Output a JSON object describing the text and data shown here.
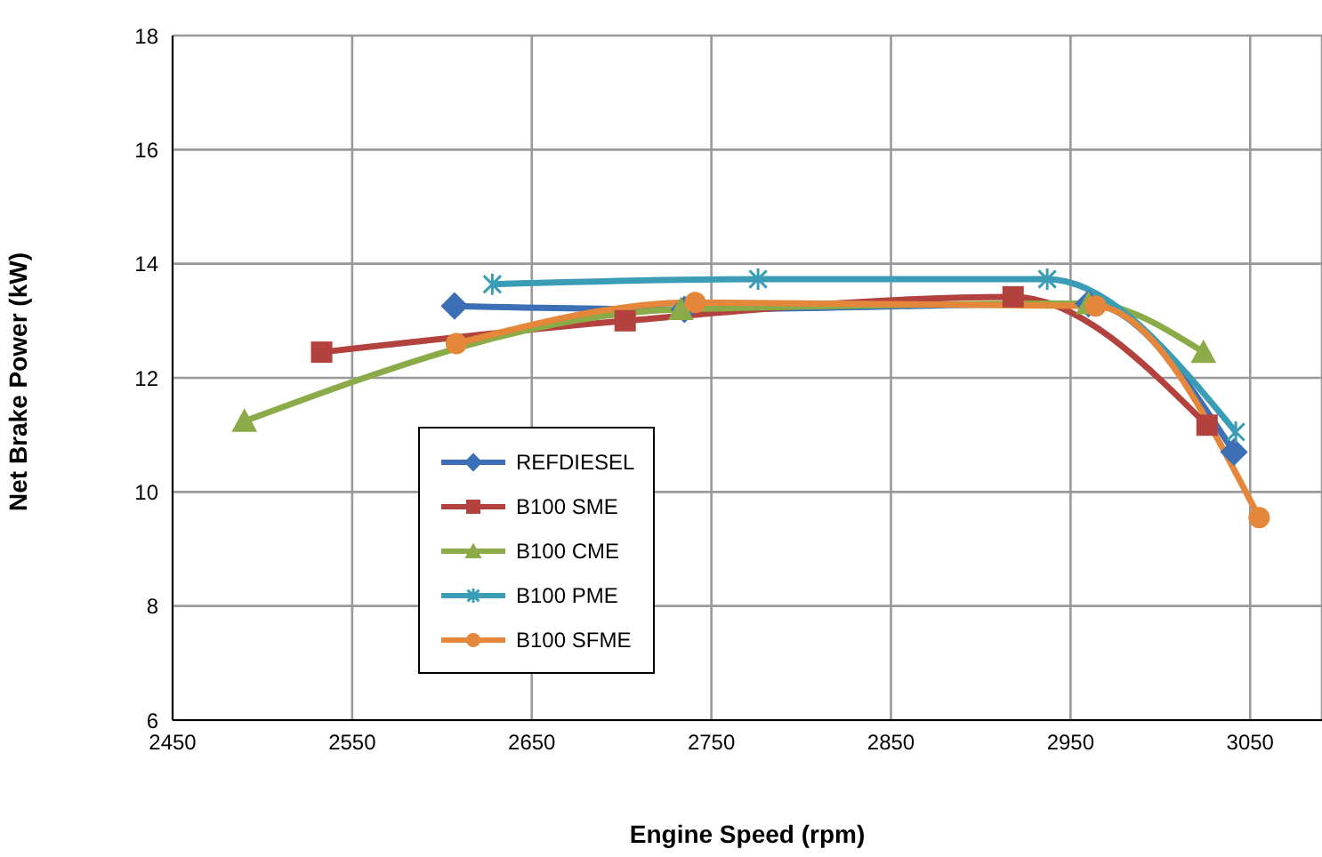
{
  "chart_data": {
    "type": "line",
    "xlabel": "Engine Speed (rpm)",
    "ylabel": "Net Brake Power (kW)",
    "xlim": [
      2450,
      3090
    ],
    "xticks": [
      2450,
      2550,
      2650,
      2750,
      2850,
      2950,
      3050
    ],
    "ylim": [
      6,
      18
    ],
    "yticks": [
      6,
      8,
      10,
      12,
      14,
      16,
      18
    ],
    "grid": true,
    "legend": "bottom left",
    "series": [
      {
        "name": "REFDIESEL",
        "color": "#3d6fb6",
        "marker": "diamond",
        "x": [
          2607,
          2735,
          2960,
          3041
        ],
        "values": [
          13.26,
          13.2,
          13.3,
          10.7
        ]
      },
      {
        "name": "B100 SME",
        "color": "#b3423f",
        "marker": "square",
        "x": [
          2533,
          2702,
          2918,
          3026
        ],
        "values": [
          12.45,
          13.0,
          13.42,
          11.17
        ]
      },
      {
        "name": "B100 CME",
        "color": "#8bab48",
        "marker": "triangle",
        "x": [
          2490,
          2733,
          2960,
          3024
        ],
        "values": [
          11.24,
          13.2,
          13.3,
          12.45
        ]
      },
      {
        "name": "B100 PME",
        "color": "#3b9cb5",
        "marker": "cross",
        "x": [
          2628,
          2776,
          2937,
          3042
        ],
        "values": [
          13.64,
          13.73,
          13.73,
          11.05
        ]
      },
      {
        "name": "B100 SFME",
        "color": "#e5873b",
        "marker": "circle",
        "x": [
          2608,
          2741,
          2964,
          3055
        ],
        "values": [
          12.6,
          13.32,
          13.26,
          9.55
        ]
      }
    ]
  }
}
